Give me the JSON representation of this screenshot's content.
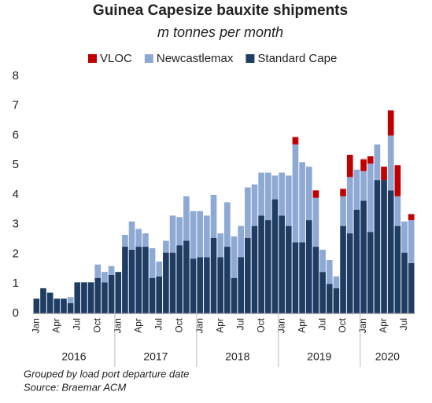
{
  "chart_data": {
    "type": "stacked_bar",
    "title": "Guinea Capesize bauxite shipments",
    "subtitle": "m tonnes per month",
    "categories": [
      "Jan",
      null,
      null,
      "Apr",
      null,
      null,
      "Jul",
      null,
      null,
      "Oct",
      null,
      null,
      "Jan",
      null,
      null,
      "Apr",
      null,
      null,
      "Jul",
      null,
      null,
      "Oct",
      null,
      null,
      "Jan",
      null,
      null,
      "Apr",
      null,
      null,
      "Jul",
      null,
      null,
      "Oct",
      null,
      null,
      "Jan",
      null,
      null,
      "Apr",
      null,
      null,
      "Jul",
      null,
      null,
      "Oct",
      null,
      null,
      "Jan",
      null,
      null,
      "Apr",
      null,
      null,
      "Jul",
      null
    ],
    "years": [
      "2016",
      "2017",
      "2018",
      "2019",
      "2020"
    ],
    "series": [
      {
        "name": "Standard Cape",
        "color": "#1f3d63",
        "values": [
          0.5,
          0.85,
          0.7,
          0.5,
          0.5,
          0.35,
          1.05,
          1.05,
          1.05,
          1.2,
          1.05,
          1.3,
          1.4,
          2.25,
          2.15,
          2.25,
          2.25,
          1.2,
          1.25,
          2.05,
          2.05,
          2.3,
          2.45,
          1.85,
          1.9,
          1.9,
          2.55,
          1.9,
          2.25,
          1.2,
          1.9,
          2.55,
          2.95,
          3.3,
          3.15,
          3.85,
          3.3,
          2.95,
          2.4,
          2.4,
          3.15,
          2.25,
          1.4,
          1.0,
          0.85,
          2.95,
          2.7,
          3.5,
          3.8,
          2.75,
          4.5,
          4.5,
          4.15,
          2.95,
          2.05,
          1.7
        ]
      },
      {
        "name": "Newcastlemax",
        "color": "#8ea9d4",
        "values": [
          0,
          0,
          0,
          0,
          0,
          0.2,
          0,
          0,
          0,
          0.45,
          0.35,
          0.3,
          0,
          0.4,
          0.95,
          0.6,
          0.45,
          1.0,
          0.5,
          0.4,
          1.25,
          0.95,
          1.5,
          1.6,
          1.55,
          1.4,
          1.45,
          0.8,
          1.5,
          1.4,
          1.05,
          1.7,
          1.4,
          1.45,
          1.6,
          0.8,
          1.45,
          1.7,
          3.3,
          2.7,
          1.8,
          1.65,
          0.75,
          0.8,
          0.4,
          1.0,
          1.9,
          1.35,
          1.0,
          2.3,
          1.2,
          0,
          1.85,
          1.0,
          1.05,
          1.45
        ]
      },
      {
        "name": "VLOC",
        "color": "#c00000",
        "values": [
          0,
          0,
          0,
          0,
          0,
          0,
          0,
          0,
          0,
          0,
          0,
          0,
          0,
          0,
          0,
          0,
          0,
          0,
          0,
          0,
          0,
          0,
          0,
          0,
          0,
          0,
          0,
          0,
          0,
          0,
          0,
          0,
          0,
          0,
          0,
          0,
          0,
          0,
          0.25,
          0,
          0,
          0.25,
          0,
          0,
          0,
          0.25,
          0.75,
          0,
          0.4,
          0.25,
          0,
          0.45,
          0.85,
          1.05,
          0,
          0.2
        ]
      }
    ],
    "legend_order": [
      2,
      1,
      0
    ],
    "ylim": [
      0,
      8
    ],
    "yticks": [
      0,
      1,
      2,
      3,
      4,
      5,
      6,
      7,
      8
    ],
    "notes": [
      "Grouped by load port departure date",
      "Source: Braemar ACM"
    ]
  }
}
